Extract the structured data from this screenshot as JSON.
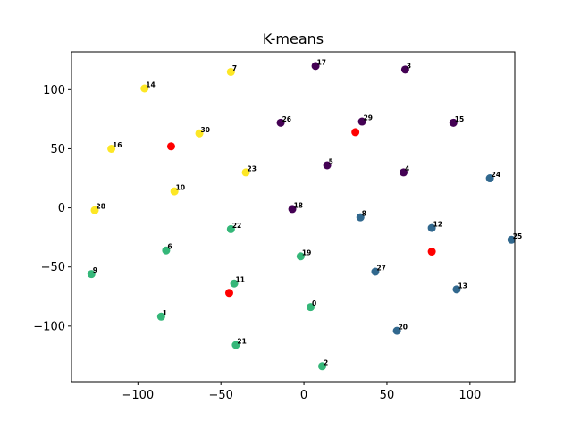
{
  "chart_data": {
    "type": "scatter",
    "title": "K-means",
    "xlabel": "",
    "ylabel": "",
    "xlim": [
      -140,
      127
    ],
    "ylim": [
      -147,
      132
    ],
    "xticks": [
      -100,
      -50,
      0,
      50,
      100
    ],
    "yticks": [
      -100,
      -50,
      0,
      50,
      100
    ],
    "grid": false,
    "colors": {
      "cluster_0": "#440154",
      "cluster_1": "#31688e",
      "cluster_2": "#35b779",
      "cluster_3": "#fde725",
      "centroid": "#ff0000"
    },
    "points": [
      {
        "label": "0",
        "x": 4,
        "y": -84,
        "cluster": "cluster_2"
      },
      {
        "label": "1",
        "x": -86,
        "y": -92,
        "cluster": "cluster_2"
      },
      {
        "label": "2",
        "x": 11,
        "y": -134,
        "cluster": "cluster_2"
      },
      {
        "label": "3",
        "x": 61,
        "y": 117,
        "cluster": "cluster_0"
      },
      {
        "label": "4",
        "x": 60,
        "y": 30,
        "cluster": "cluster_0"
      },
      {
        "label": "5",
        "x": 14,
        "y": 36,
        "cluster": "cluster_0"
      },
      {
        "label": "6",
        "x": -83,
        "y": -36,
        "cluster": "cluster_2"
      },
      {
        "label": "7",
        "x": -44,
        "y": 115,
        "cluster": "cluster_3"
      },
      {
        "label": "8",
        "x": 34,
        "y": -8,
        "cluster": "cluster_1"
      },
      {
        "label": "9",
        "x": -128,
        "y": -56,
        "cluster": "cluster_2"
      },
      {
        "label": "10",
        "x": -78,
        "y": 14,
        "cluster": "cluster_3"
      },
      {
        "label": "11",
        "x": -42,
        "y": -64,
        "cluster": "cluster_2"
      },
      {
        "label": "12",
        "x": 77,
        "y": -17,
        "cluster": "cluster_1"
      },
      {
        "label": "13",
        "x": 92,
        "y": -69,
        "cluster": "cluster_1"
      },
      {
        "label": "14",
        "x": -96,
        "y": 101,
        "cluster": "cluster_3"
      },
      {
        "label": "15",
        "x": 90,
        "y": 72,
        "cluster": "cluster_0"
      },
      {
        "label": "16",
        "x": -116,
        "y": 50,
        "cluster": "cluster_3"
      },
      {
        "label": "17",
        "x": 7,
        "y": 120,
        "cluster": "cluster_0"
      },
      {
        "label": "18",
        "x": -7,
        "y": -1,
        "cluster": "cluster_0"
      },
      {
        "label": "19",
        "x": -2,
        "y": -41,
        "cluster": "cluster_2"
      },
      {
        "label": "20",
        "x": 56,
        "y": -104,
        "cluster": "cluster_1"
      },
      {
        "label": "21",
        "x": -41,
        "y": -116,
        "cluster": "cluster_2"
      },
      {
        "label": "22",
        "x": -44,
        "y": -18,
        "cluster": "cluster_2"
      },
      {
        "label": "23",
        "x": -35,
        "y": 30,
        "cluster": "cluster_3"
      },
      {
        "label": "24",
        "x": 112,
        "y": 25,
        "cluster": "cluster_1"
      },
      {
        "label": "25",
        "x": 125,
        "y": -27,
        "cluster": "cluster_1"
      },
      {
        "label": "26",
        "x": -14,
        "y": 72,
        "cluster": "cluster_0"
      },
      {
        "label": "27",
        "x": 43,
        "y": -54,
        "cluster": "cluster_1"
      },
      {
        "label": "28",
        "x": -126,
        "y": -2,
        "cluster": "cluster_3"
      },
      {
        "label": "29",
        "x": 35,
        "y": 73,
        "cluster": "cluster_0"
      },
      {
        "label": "30",
        "x": -63,
        "y": 63,
        "cluster": "cluster_3"
      }
    ],
    "centroids": [
      {
        "x": -80,
        "y": 52
      },
      {
        "x": 31,
        "y": 64
      },
      {
        "x": 77,
        "y": -37
      },
      {
        "x": -45,
        "y": -72
      }
    ]
  }
}
